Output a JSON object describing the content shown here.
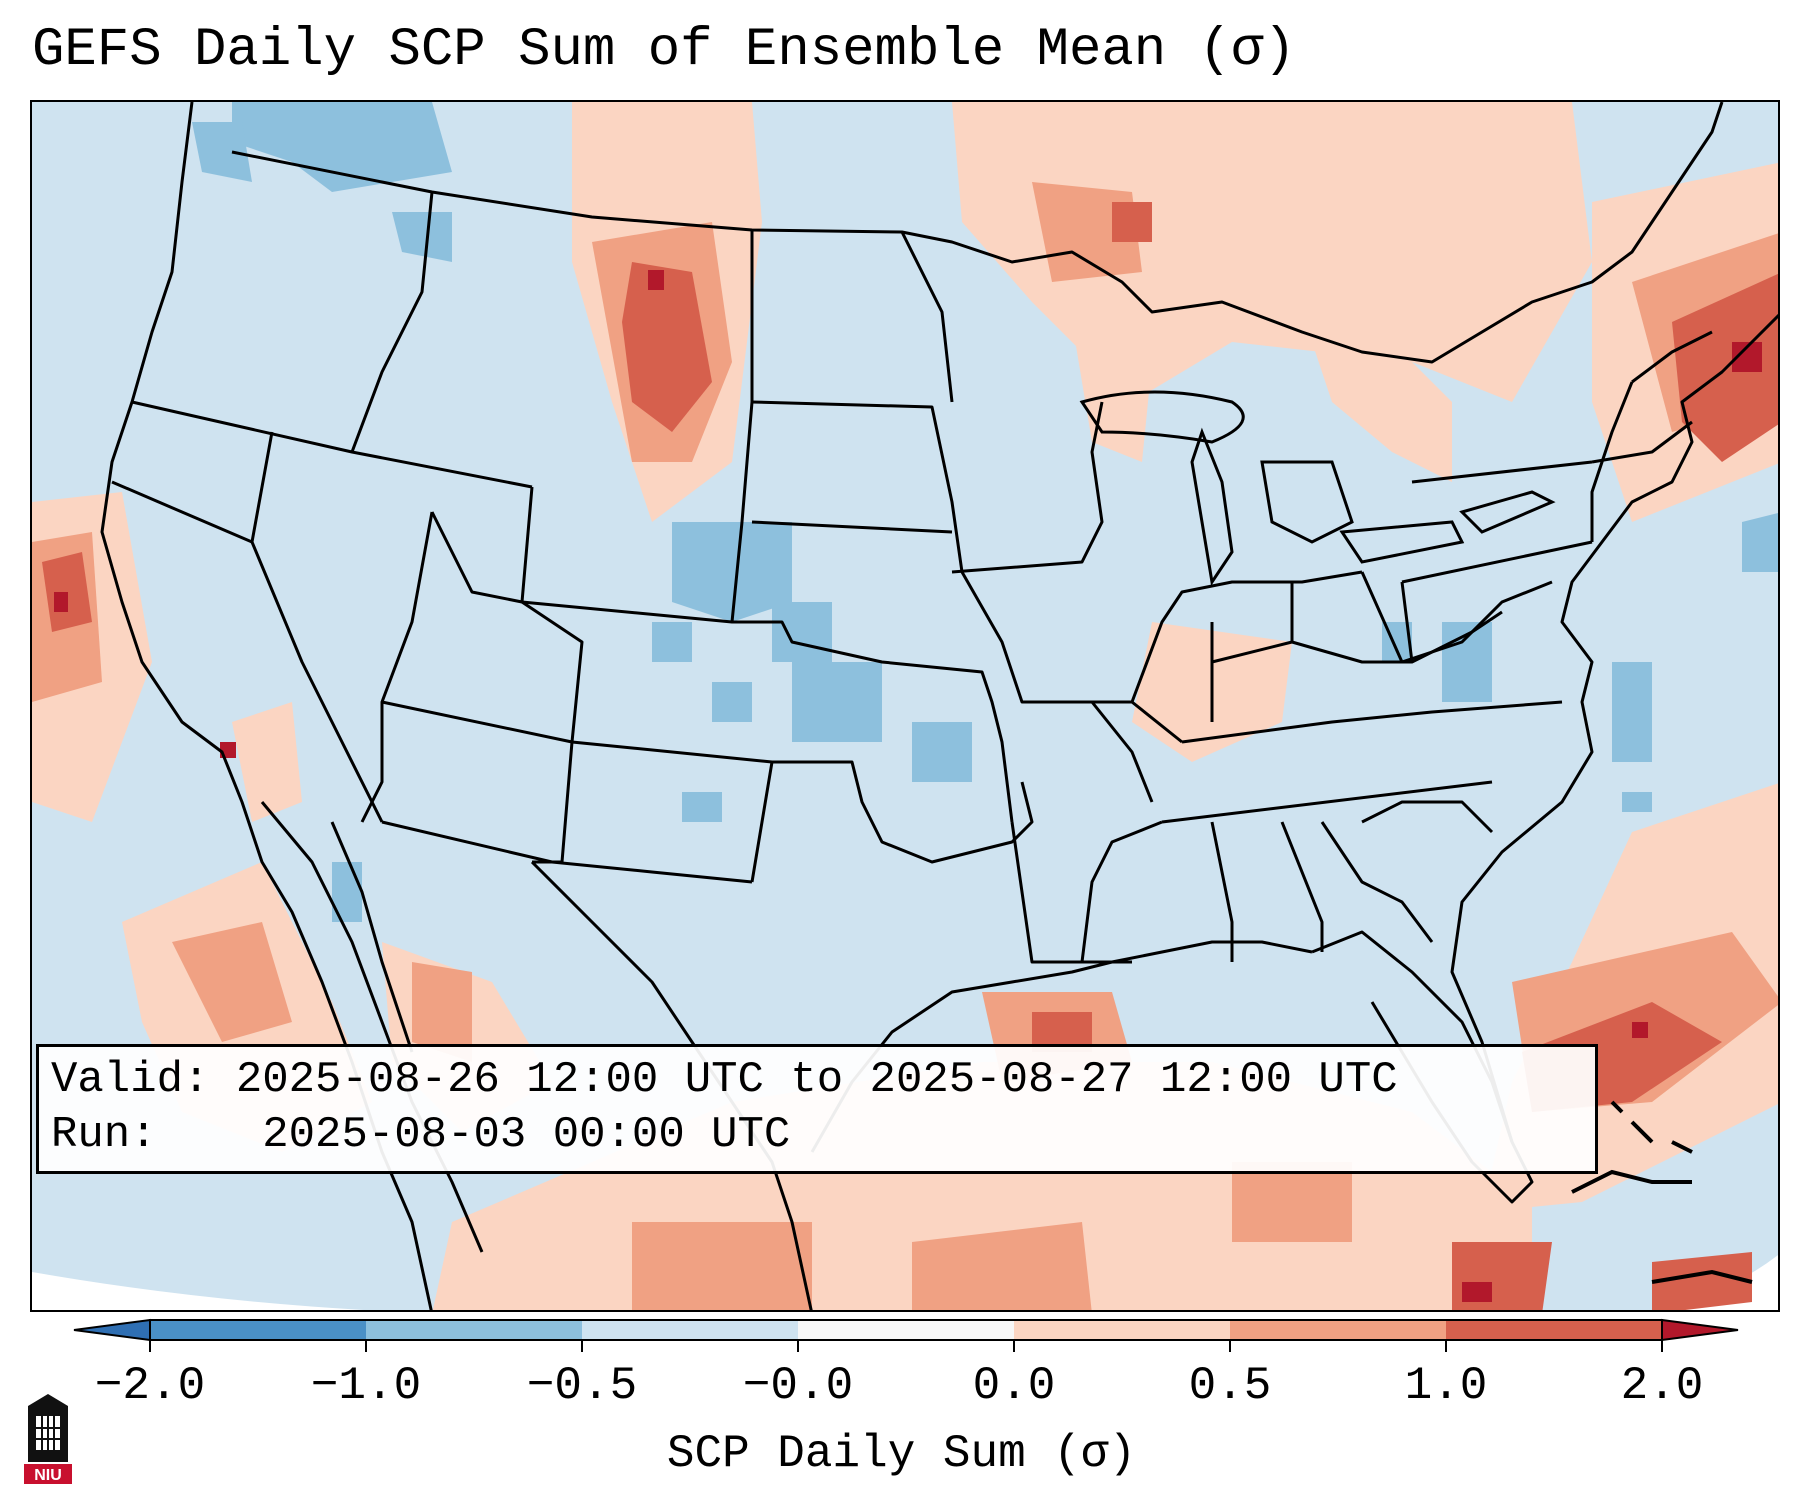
{
  "title": "GEFS Daily SCP Sum of Ensemble Mean (σ)",
  "info": {
    "valid_label": "Valid:",
    "valid_value": "2025-08-26 12:00 UTC to 2025-08-27 12:00 UTC",
    "run_label": "Run:",
    "run_value": "2025-08-03 00:00 UTC"
  },
  "colorbar": {
    "label": "SCP Daily Sum (σ)",
    "ticks": [
      "−2.0",
      "−1.0",
      "−0.5",
      "−0.0",
      "0.0",
      "0.5",
      "1.0",
      "2.0"
    ],
    "colors": {
      "below_min": "#2f6fb3",
      "lt_-1": "#4a90c6",
      "-1_to_-0.5": "#8dc0dd",
      "-0.5_to_0": "#cfe3f0",
      "zero": "#f7f7f7",
      "0_to_0.5": "#fbd5c2",
      "0.5_to_1": "#f0a183",
      "1_to_2": "#d6604d",
      "above_max": "#b2182b"
    }
  },
  "logo": {
    "text": "NIU"
  }
}
